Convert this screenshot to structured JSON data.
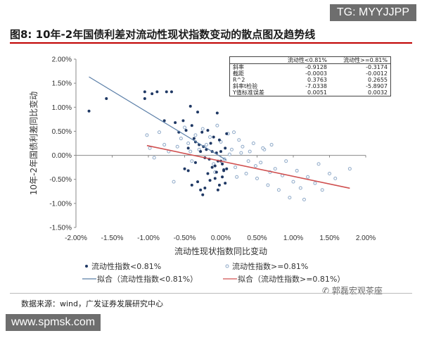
{
  "header": {
    "title": "图8:  10年-2年国债利差对流动性现状指数变动的散点图及趋势线"
  },
  "watermarks": {
    "tg": "TG: MYYJJPP",
    "site": "www.spmsk.com",
    "wechat": "郭磊宏观茶座"
  },
  "source": "数据来源：wind，广发证券发展研究中心",
  "stats_table": {
    "headers": [
      "",
      "流动性<0.81%",
      "流动性>=0.81%"
    ],
    "rows": [
      [
        "斜率",
        "-0.9128",
        "-0.3174"
      ],
      [
        "截距",
        "-0.0003",
        "-0.0012"
      ],
      [
        "R^2",
        "0.3763",
        "0.2655"
      ],
      [
        "斜率t检验",
        "-7.0338",
        "-5.8907"
      ],
      [
        "Y值标准误差",
        "0.0051",
        "0.0032"
      ]
    ]
  },
  "legend": {
    "dark_points": "流动性指数<0.81%",
    "light_points": "流动性指数>=0.81%",
    "dark_fit": "拟合（流动性指数<0.81%）",
    "light_fit": "拟合（流动性指数>=0.81%）"
  },
  "colors": {
    "dark": "#1f3864",
    "dark_line": "#5b7fa8",
    "light": "#8ea9c8",
    "light_line": "#d05050",
    "title_rule": "#c00000"
  },
  "chart_data": {
    "type": "scatter",
    "xlabel": "流动性现状指数同比变动",
    "ylabel": "10年-2年国债利差同比变动",
    "xlim": [
      -0.02,
      0.02
    ],
    "ylim": [
      -0.015,
      0.02
    ],
    "xticks": [
      "-2.00%",
      "-1.50%",
      "-1.00%",
      "-0.50%",
      "0.00%",
      "0.50%",
      "1.00%",
      "1.50%",
      "2.00%"
    ],
    "yticks": [
      "-1.50%",
      "-1.00%",
      "-0.50%",
      "0.00%",
      "0.50%",
      "1.00%",
      "1.50%",
      "2.00%"
    ],
    "grid": false,
    "series": [
      {
        "name": "流动性指数<0.81%",
        "marker": "filled",
        "x": [
          -0.0182,
          -0.0158,
          -0.0105,
          -0.0105,
          -0.0095,
          -0.0088,
          -0.0078,
          -0.0075,
          -0.0068,
          -0.0063,
          -0.0058,
          -0.0052,
          -0.0048,
          -0.0045,
          -0.0042,
          -0.004,
          -0.0037,
          -0.0035,
          -0.0032,
          -0.003,
          -0.0028,
          -0.0026,
          -0.0024,
          -0.0022,
          -0.002,
          -0.0018,
          -0.0016,
          -0.0014,
          -0.0012,
          -0.001,
          -0.0008,
          -0.0006,
          -0.0004,
          -0.0002,
          0.0,
          0.0002,
          0.0004,
          0.0006,
          0.0008,
          0.0008,
          0.0006,
          0.0004,
          0.0002,
          0.0,
          -0.0002,
          -0.0004,
          -0.0006,
          -0.0008,
          -0.0012,
          -0.0018,
          -0.0022,
          -0.0028,
          -0.0032,
          -0.0035,
          -0.004,
          -0.0045,
          -0.005,
          -0.0025,
          -0.0015,
          -0.0005
        ],
        "y": [
          0.0092,
          0.0118,
          0.0132,
          0.0118,
          0.0128,
          0.0132,
          0.0072,
          0.0132,
          0.0132,
          0.0068,
          0.0048,
          0.0072,
          0.0052,
          0.0015,
          0.0102,
          0.0062,
          0.0035,
          0.0028,
          0.009,
          0.0022,
          0.0008,
          0.0048,
          0.0018,
          -0.0005,
          0.0012,
          0.0052,
          -0.0008,
          0.0025,
          0.0008,
          0.0038,
          -0.0022,
          0.0005,
          -0.0012,
          0.0032,
          0.0008,
          -0.0018,
          -0.003,
          0.0015,
          -0.0028,
          0.0045,
          -0.0058,
          -0.0032,
          -0.0045,
          -0.0012,
          -0.0062,
          -0.0072,
          -0.0035,
          -0.0048,
          -0.0025,
          -0.0038,
          -0.0068,
          -0.0072,
          -0.0055,
          -0.0015,
          -0.0062,
          -0.0032,
          -0.0028,
          -0.0082,
          -0.0052,
          0.0088
        ]
      },
      {
        "name": "流动性指数>=0.81%",
        "marker": "hollow",
        "x": [
          -0.0102,
          -0.0098,
          -0.0092,
          -0.0085,
          -0.0078,
          -0.0072,
          -0.0065,
          -0.006,
          -0.0055,
          -0.005,
          -0.0045,
          -0.004,
          -0.0035,
          -0.003,
          -0.0025,
          -0.002,
          -0.0015,
          -0.001,
          -0.0005,
          0.0,
          0.0005,
          0.001,
          0.0015,
          0.002,
          0.0025,
          0.003,
          0.0035,
          0.004,
          0.0045,
          0.005,
          0.0055,
          0.006,
          0.0065,
          0.007,
          0.0075,
          0.008,
          0.0085,
          0.009,
          0.0095,
          0.01,
          0.0105,
          0.011,
          0.0115,
          0.012,
          0.013,
          0.0135,
          0.014,
          0.015,
          0.0158,
          0.0178,
          0.0028,
          0.0038,
          0.0048,
          0.0058,
          0.0068,
          0.0022,
          0.0018,
          0.0012,
          -0.0008,
          -0.0042
        ],
        "y": [
          0.0042,
          0.0015,
          -0.0005,
          0.0048,
          0.0022,
          0.0008,
          -0.0055,
          0.0018,
          0.0035,
          0.0058,
          0.0025,
          -0.0012,
          0.0042,
          0.0012,
          0.0055,
          0.0022,
          0.0038,
          -0.0018,
          0.0062,
          0.0028,
          -0.0008,
          0.0045,
          0.0012,
          -0.0025,
          0.0032,
          0.0018,
          -0.0038,
          0.0008,
          0.0025,
          -0.0048,
          -0.0015,
          0.0012,
          -0.0062,
          0.0022,
          -0.0028,
          -0.0072,
          -0.0042,
          -0.0012,
          -0.0088,
          -0.0055,
          -0.0032,
          -0.0068,
          -0.0092,
          -0.0045,
          -0.0058,
          -0.0018,
          -0.0072,
          -0.0038,
          -0.0048,
          -0.0028,
          0.0005,
          -0.0012,
          -0.0022,
          0.0015,
          -0.0035,
          -0.0045,
          0.0048,
          0.0002,
          -0.0035,
          0.0008
        ]
      }
    ],
    "fit_lines": [
      {
        "name": "拟合（流动性指数<0.81%）",
        "slope": -0.9128,
        "intercept": -0.0003,
        "x_range": [
          -0.0182,
          0.0008
        ]
      },
      {
        "name": "拟合（流动性指数>=0.81%）",
        "slope": -0.3174,
        "intercept": -0.0012,
        "x_range": [
          -0.0102,
          0.0178
        ]
      }
    ]
  }
}
